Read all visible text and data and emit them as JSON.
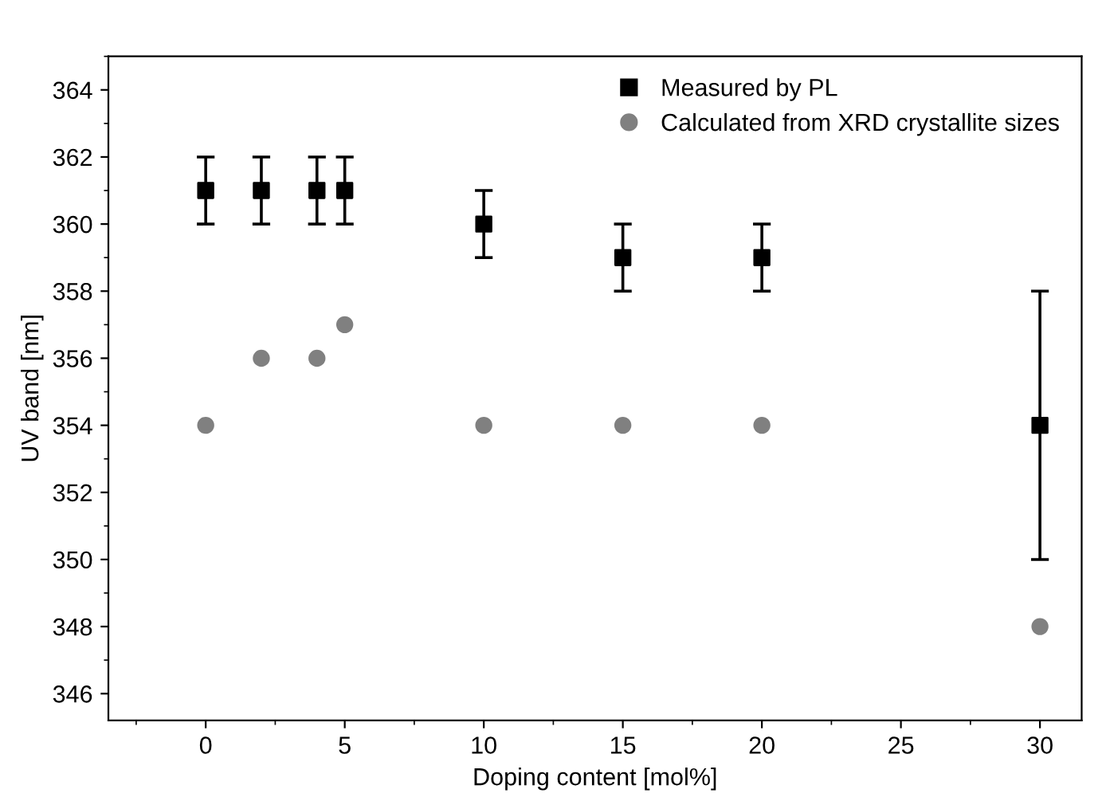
{
  "chart_data": {
    "type": "scatter",
    "xlabel": "Doping content [mol%]",
    "ylabel": "UV band [nm]",
    "xlim": [
      -3.5,
      31.5
    ],
    "xticks": [
      0,
      5,
      10,
      15,
      20,
      25,
      30
    ],
    "ylim": [
      345.2,
      365
    ],
    "yticks": [
      346,
      348,
      350,
      352,
      354,
      356,
      358,
      360,
      362,
      364
    ],
    "grid": false,
    "legend": "top right",
    "series": [
      {
        "name": "Measured by PL",
        "color": "#000000",
        "marker": "square",
        "x": [
          0,
          2,
          4,
          5,
          10,
          15,
          20,
          30
        ],
        "values": [
          361,
          361,
          361,
          361,
          360,
          359,
          359,
          354
        ],
        "errors": [
          1,
          1,
          1,
          1,
          1,
          1,
          1,
          4
        ]
      },
      {
        "name": "Calculated from XRD crystallite sizes",
        "color": "#808080",
        "marker": "circle",
        "x": [
          0,
          2,
          4,
          5,
          10,
          15,
          20,
          30
        ],
        "values": [
          354,
          356,
          356,
          357,
          354,
          354,
          354,
          348
        ]
      }
    ]
  }
}
